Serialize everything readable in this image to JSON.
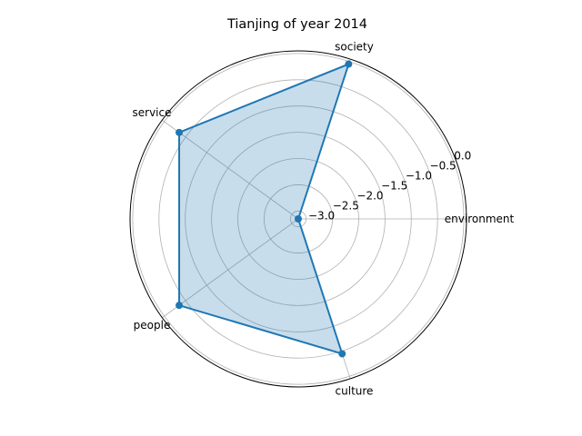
{
  "chart_data": {
    "type": "radar",
    "title": "Tianjing of year 2014",
    "categories": [
      "environment",
      "society",
      "service",
      "people",
      "culture"
    ],
    "values": [
      -3.15,
      -0.05,
      -0.35,
      -0.35,
      -0.45
    ],
    "rlim": [
      -3.15,
      0.05
    ],
    "rticks": [
      -3.0,
      -2.5,
      -2.0,
      -1.5,
      -1.0,
      -0.5,
      0.0
    ],
    "rtick_labels": [
      "−3.0",
      "−2.5",
      "−2.0",
      "−1.5",
      "−1.0",
      "−0.5",
      "0.0"
    ],
    "grid": true,
    "colors": {
      "line": "#1f77b4",
      "fill": "#1f77b4"
    }
  }
}
